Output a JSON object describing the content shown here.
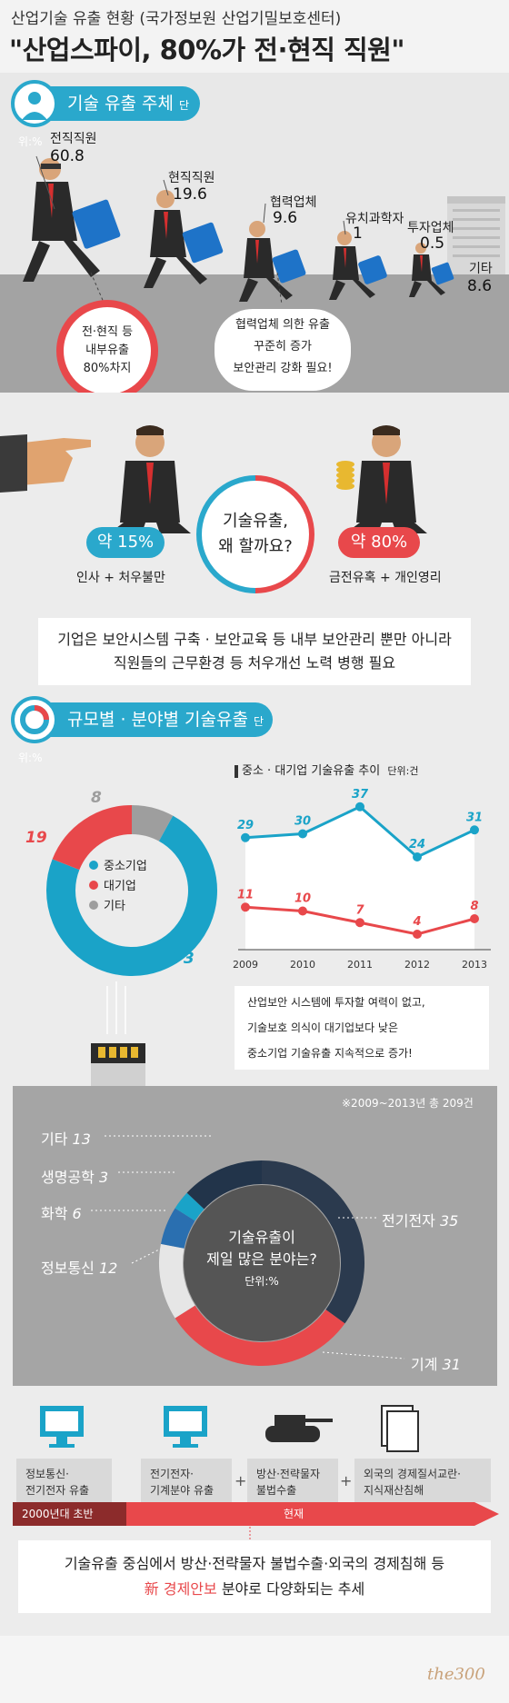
{
  "header": {
    "kicker": "산업기술 유출 현황 (국가정보원 산업기밀보호센터)",
    "headline": "\"산업스파이, 80%가 전·현직 직원\""
  },
  "section1": {
    "title": "기술 유출 주체",
    "unit": "단위:%",
    "actors": [
      {
        "label": "전직직원",
        "value": "60.8"
      },
      {
        "label": "현직직원",
        "value": "19.6"
      },
      {
        "label": "협력업체",
        "value": "9.6"
      },
      {
        "label": "유치과학자",
        "value": "1"
      },
      {
        "label": "투자업체",
        "value": "0.5"
      },
      {
        "label": "기타",
        "value": "8.6"
      }
    ],
    "note_left": [
      "전·현직 등",
      "내부유출",
      "80%차지"
    ],
    "note_right": [
      "협력업체 의한 유출",
      "꾸준히 증가",
      "보안관리 강화 필요!"
    ]
  },
  "section2": {
    "question": [
      "기술유출,",
      "왜 할까요?"
    ],
    "left_pct": "약 15%",
    "left_reason": "인사 + 처우불만",
    "right_pct": "약 80%",
    "right_reason": "금전유혹 + 개인영리",
    "banner": [
      "기업은 보안시스템 구축 · 보안교육 등 내부 보안관리 뿐만 아니라",
      "직원들의 근무환경 등 처우개선 노력 병행 필요"
    ]
  },
  "section3": {
    "title": "규모별 · 분야별 기술유출",
    "unit": "단위:%",
    "colors": {
      "sme": "#1aa3c8",
      "large": "#e8484b",
      "other": "#9e9e9e"
    },
    "donut_legend": [
      "중소기업",
      "대기업",
      "기타"
    ],
    "line_title": "중소 · 대기업 기술유출 추이",
    "line_unit": "단위:건",
    "line_note": [
      "산업보안 시스템에 투자할 여력이 없고,",
      "기술보호 의식이 대기업보다 낮은",
      "중소기업 기술유출 지속적으로 증가!"
    ],
    "field_note": "※2009~2013년 총 209건",
    "field_center": [
      "기술유출이",
      "제일 많은 분야는?",
      "단위:%"
    ],
    "field_labels": [
      {
        "name": "기타",
        "value": "13"
      },
      {
        "name": "생명공학",
        "value": "3"
      },
      {
        "name": "화학",
        "value": "6"
      },
      {
        "name": "정보통신",
        "value": "12"
      },
      {
        "name": "전기전자",
        "value": "35"
      },
      {
        "name": "기계",
        "value": "31"
      }
    ]
  },
  "chart_data": [
    {
      "type": "pie",
      "categories": [
        "중소기업",
        "대기업",
        "기타"
      ],
      "values": [
        73,
        19,
        8
      ]
    },
    {
      "type": "line",
      "title": "중소 · 대기업 기술유출 추이",
      "x": [
        "2009",
        "2010",
        "2011",
        "2012",
        "2013"
      ],
      "series": [
        {
          "values": [
            29,
            30,
            37,
            24,
            31
          ]
        },
        {
          "values": [
            11,
            10,
            7,
            4,
            8
          ]
        }
      ],
      "ylim": [
        0,
        40
      ],
      "grid": false
    },
    {
      "type": "pie",
      "categories": [
        "전기전자",
        "기계",
        "정보통신",
        "화학",
        "생명공학",
        "기타"
      ],
      "values": [
        35,
        31,
        12,
        6,
        3,
        13
      ]
    }
  ],
  "timeline": {
    "boxes": [
      [
        "정보통신·",
        "전기전자 유출"
      ],
      [
        "전기전자·",
        "기계분야 유출"
      ],
      [
        "방산·전략물자",
        "불법수출"
      ],
      [
        "외국의 경제질서교란·",
        "지식재산침해"
      ]
    ],
    "period_left": "2000년대 초반",
    "period_right": "현재",
    "final_line1": "기술유출 중심에서 방산·전략물자 불법수출·외국의 경제침해 등",
    "final_new": "新 경제안보",
    "final_rest": " 분야로 다양화되는 추세"
  },
  "footer": {
    "logo": "the300"
  }
}
